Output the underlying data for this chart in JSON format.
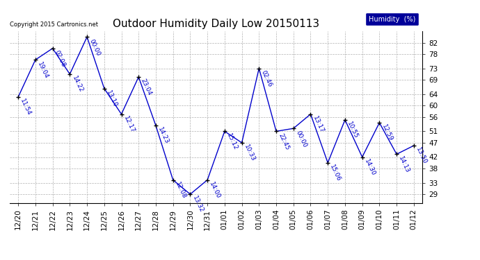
{
  "title": "Outdoor Humidity Daily Low 20150113",
  "copyright": "Copyright 2015 Cartronics.net",
  "x_labels": [
    "12/20",
    "12/21",
    "12/22",
    "12/23",
    "12/24",
    "12/25",
    "12/26",
    "12/27",
    "12/28",
    "12/29",
    "12/30",
    "12/31",
    "01/01",
    "01/02",
    "01/03",
    "01/04",
    "01/05",
    "01/06",
    "01/07",
    "01/08",
    "01/09",
    "01/10",
    "01/11",
    "01/12"
  ],
  "y_values": [
    63,
    76,
    80,
    71,
    84,
    66,
    57,
    70,
    53,
    34,
    29,
    34,
    51,
    47,
    73,
    51,
    52,
    57,
    40,
    55,
    42,
    54,
    43,
    46
  ],
  "point_labels": [
    "11:54",
    "19:04",
    "02:08",
    "14:22",
    "00:00",
    "13:10",
    "12:17",
    "23:04",
    "14:23",
    "12:08",
    "13:32",
    "14:00",
    "15:12",
    "10:33",
    "02:46",
    "22:45",
    "00:00",
    "13:17",
    "15:06",
    "10:55",
    "14:30",
    "12:59",
    "14:13",
    "13:50"
  ],
  "line_color": "#0000cc",
  "marker_color": "#000000",
  "label_color": "#0000cc",
  "background_color": "#ffffff",
  "grid_color": "#b0b0b0",
  "ylim": [
    26,
    86
  ],
  "yticks": [
    29,
    33,
    38,
    42,
    47,
    51,
    56,
    60,
    64,
    69,
    73,
    78,
    82
  ],
  "legend_text": "Humidity  (%)",
  "legend_bg": "#000099",
  "legend_fg": "#ffffff",
  "title_fontsize": 11,
  "label_fontsize": 6.5,
  "tick_fontsize": 7.5,
  "copyright_fontsize": 6
}
